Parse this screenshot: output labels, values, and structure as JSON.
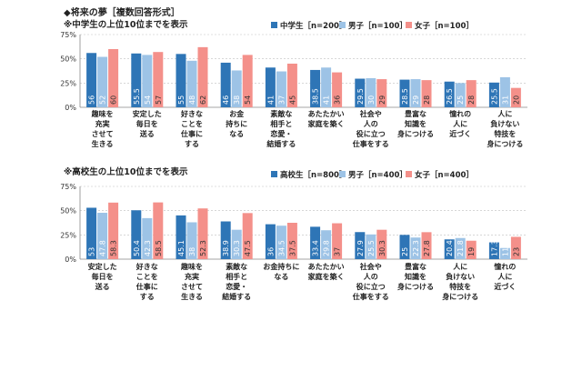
{
  "heading": "◆将来の夢［複数回答形式］",
  "colors": {
    "group_a": "#2e75b6",
    "group_b": "#9dc3e6",
    "group_c": "#f4908a",
    "grid": "#bfbfbf"
  },
  "chart_data": [
    {
      "type": "bar",
      "title": "※中学生の上位10位までを表示",
      "ylim": [
        0,
        75
      ],
      "yticks": [
        "0%",
        "25%",
        "50%",
        "75%"
      ],
      "grid": true,
      "legend_position": "top-right",
      "categories": [
        [
          "趣味を",
          "充実",
          "させて",
          "生きる"
        ],
        [
          "安定した",
          "毎日を",
          "送る"
        ],
        [
          "好きな",
          "ことを",
          "仕事に",
          "する"
        ],
        [
          "お金",
          "持ちに",
          "なる"
        ],
        [
          "素敵な",
          "相手と",
          "恋愛・",
          "結婚する"
        ],
        [
          "あたたかい",
          "家庭を築く"
        ],
        [
          "社会や",
          "人の",
          "役に立つ",
          "仕事をする"
        ],
        [
          "豊富な",
          "知識を",
          "身につける"
        ],
        [
          "憧れの",
          "人に",
          "近づく"
        ],
        [
          "人に",
          "負けない",
          "特技を",
          "身につける"
        ]
      ],
      "series": [
        {
          "name": "中学生［n=200］",
          "values": [
            56.0,
            55.5,
            55.0,
            46.0,
            41.0,
            38.5,
            29.5,
            28.5,
            26.5,
            25.5
          ]
        },
        {
          "name": "男子［n=100］",
          "values": [
            52.0,
            54.0,
            48.0,
            38.0,
            37.0,
            41.0,
            30.0,
            29.0,
            25.0,
            31.0
          ]
        },
        {
          "name": "女子［n=100］",
          "values": [
            60.0,
            57.0,
            62.0,
            54.0,
            45.0,
            36.0,
            29.0,
            28.0,
            28.0,
            20.0
          ]
        }
      ]
    },
    {
      "type": "bar",
      "title": "※高校生の上位10位までを表示",
      "ylim": [
        0,
        75
      ],
      "yticks": [
        "0%",
        "25%",
        "50%",
        "75%"
      ],
      "grid": true,
      "legend_position": "top-right",
      "categories": [
        [
          "安定した",
          "毎日を",
          "送る"
        ],
        [
          "好きな",
          "ことを",
          "仕事に",
          "する"
        ],
        [
          "趣味を",
          "充実",
          "させて",
          "生きる"
        ],
        [
          "素敵な",
          "相手と",
          "恋愛・",
          "結婚する"
        ],
        [
          "お金持ちに",
          "なる"
        ],
        [
          "あたたかい",
          "家庭を築く"
        ],
        [
          "社会や",
          "人の",
          "役に立つ",
          "仕事をする"
        ],
        [
          "豊富な",
          "知識を",
          "身につける"
        ],
        [
          "人に",
          "負けない",
          "特技を",
          "身につける"
        ],
        [
          "憧れの",
          "人に",
          "近づく"
        ]
      ],
      "series": [
        {
          "name": "高校生［n=800］",
          "values": [
            53.0,
            50.4,
            45.1,
            38.9,
            36.0,
            33.4,
            27.9,
            25.0,
            20.4,
            17.3
          ]
        },
        {
          "name": "男子［n=400］",
          "values": [
            47.8,
            42.3,
            38.0,
            30.3,
            34.5,
            29.8,
            25.5,
            22.3,
            21.8,
            11.5
          ]
        },
        {
          "name": "女子［n=400］",
          "values": [
            58.3,
            58.5,
            52.3,
            47.5,
            37.5,
            37.0,
            30.3,
            27.8,
            19.0,
            23.0
          ]
        }
      ]
    }
  ]
}
